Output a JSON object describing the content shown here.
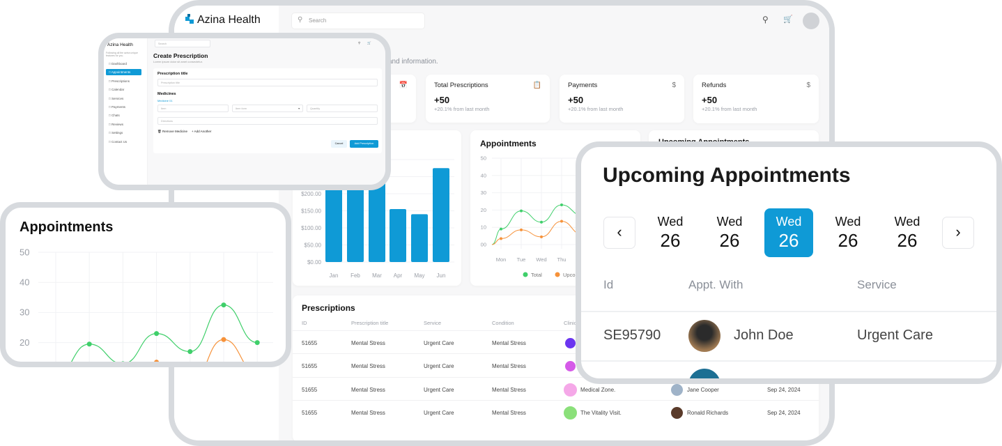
{
  "brand": {
    "name": "Azina Health",
    "accent": "#0f9ad6"
  },
  "header": {
    "search_placeholder": "Search",
    "icons": [
      "search-icon",
      "cart-icon",
      "avatar"
    ]
  },
  "page": {
    "subtitle": "and information."
  },
  "stats": [
    {
      "title": "",
      "value": "",
      "sub": "",
      "icon": "calendar-icon"
    },
    {
      "title": "Total Prescriptions",
      "value": "+50",
      "sub": "+20.1% from last month",
      "icon": "prescription-icon"
    },
    {
      "title": "Payments",
      "value": "+50",
      "sub": "+20.1% from last month",
      "icon": "dollar-icon"
    },
    {
      "title": "Refunds",
      "value": "+50",
      "sub": "+20.1% from last month",
      "icon": "dollar-icon"
    }
  ],
  "upcoming_card_title": "Upcoming Appointments",
  "prescriptions": {
    "title": "Prescriptions",
    "headers": [
      "ID",
      "Prescription title",
      "Service",
      "Condition",
      "Clinic"
    ],
    "rows": [
      {
        "id": "51655",
        "title": "Mental Stress",
        "service": "Urgent Care",
        "condition": "Mental Stress",
        "clinic": "",
        "clinic_color": "#6b35f0",
        "doctor": "",
        "date": ""
      },
      {
        "id": "51655",
        "title": "Mental Stress",
        "service": "Urgent Care",
        "condition": "Mental Stress",
        "clinic": "",
        "clinic_color": "#d55ae8",
        "doctor": "",
        "date": ""
      },
      {
        "id": "51655",
        "title": "Mental Stress",
        "service": "Urgent Care",
        "condition": "Mental Stress",
        "clinic": "Medical Zone.",
        "clinic_color": "#f5a8e8",
        "doctor": "Jane Cooper",
        "date": "Sep 24, 2024"
      },
      {
        "id": "51655",
        "title": "Mental Stress",
        "service": "Urgent Care",
        "condition": "Mental Stress",
        "clinic": "The Vitality Visit.",
        "clinic_color": "#8be07a",
        "doctor": "Ronald Richards",
        "date": "Sep 24, 2024"
      }
    ]
  },
  "create_prescription": {
    "brand": "Azina Health",
    "tagline": "Following all the azina unique features for you.",
    "search_placeholder": "Search",
    "nav": [
      "Dashboard",
      "Appointments",
      "Prescriptions",
      "Calendar",
      "Services",
      "Payments",
      "Chats",
      "Reviews",
      "Settings",
      "Contact Us"
    ],
    "active_nav": 1,
    "title": "Create Prescription",
    "subtitle": "Lorem ipsum dolor sit amet consectetur.",
    "prescription_title_label": "Prescription title",
    "prescription_title_placeholder": "Prescription title",
    "medicines_label": "Medicines",
    "medicine_label": "Medicine 01",
    "item_placeholder": "Item",
    "item_form_placeholder": "Item form",
    "quantity_placeholder": "Quantity",
    "directions_placeholder": "Directions",
    "remove_label": "Remove Medicine",
    "add_another_label": "Add Another",
    "cancel_label": "Cancel",
    "submit_label": "Add Prescription"
  },
  "upcoming": {
    "title": "Upcoming Appointments",
    "days": [
      {
        "dow": "Wed",
        "day": "26"
      },
      {
        "dow": "Wed",
        "day": "26"
      },
      {
        "dow": "Wed",
        "day": "26"
      },
      {
        "dow": "Wed",
        "day": "26"
      },
      {
        "dow": "Wed",
        "day": "26"
      }
    ],
    "selected": 2,
    "headers": [
      "Id",
      "Appt. With",
      "Service"
    ],
    "rows": [
      {
        "id": "SE95790",
        "name": "John Doe",
        "service": "Urgent Care"
      }
    ]
  },
  "chart_data": [
    {
      "type": "bar",
      "title": "",
      "categories": [
        "Jan",
        "Feb",
        "Mar",
        "Apr",
        "May",
        "Jun"
      ],
      "values": [
        250,
        255,
        245,
        155,
        140,
        275
      ],
      "yticks": [
        "$0.00",
        "$50.00",
        "$100.00",
        "$150.00",
        "$200.00"
      ],
      "ylim": [
        0,
        300
      ],
      "color": "#0f9ad6",
      "grid": true
    },
    {
      "type": "line",
      "title": "Appointments",
      "categories": [
        "Mon",
        "Tue",
        "Wed",
        "Thu",
        "Fri",
        "Sat",
        "Sun"
      ],
      "yticks": [
        "00",
        "10",
        "20",
        "30",
        "40",
        "50"
      ],
      "ylim": [
        0,
        50
      ],
      "grid": true,
      "legend": "bottom",
      "series": [
        {
          "name": "Total",
          "color": "#3fcf6a",
          "values": [
            9,
            19.5,
            13,
            23,
            17,
            32.5,
            20
          ]
        },
        {
          "name": "Upcoming",
          "color": "#f6923a",
          "values": [
            3.5,
            8.5,
            4.5,
            13.5,
            6,
            21,
            10
          ]
        }
      ]
    },
    {
      "type": "line",
      "title": "Appointments",
      "categories": [
        "Mon",
        "Tue",
        "Wed",
        "Thu",
        "Fri",
        "Sat",
        "Sun"
      ],
      "yticks": [
        "50",
        "40",
        "30",
        "20"
      ],
      "ylim": [
        0,
        50
      ],
      "grid": true,
      "series": [
        {
          "name": "Total",
          "color": "#3fcf6a",
          "values": [
            9,
            19.5,
            13,
            23,
            17,
            32.5,
            20
          ]
        },
        {
          "name": "Upcoming",
          "color": "#f6923a",
          "values": [
            3.5,
            8.5,
            4.5,
            13.5,
            6,
            21,
            10
          ]
        }
      ]
    }
  ]
}
